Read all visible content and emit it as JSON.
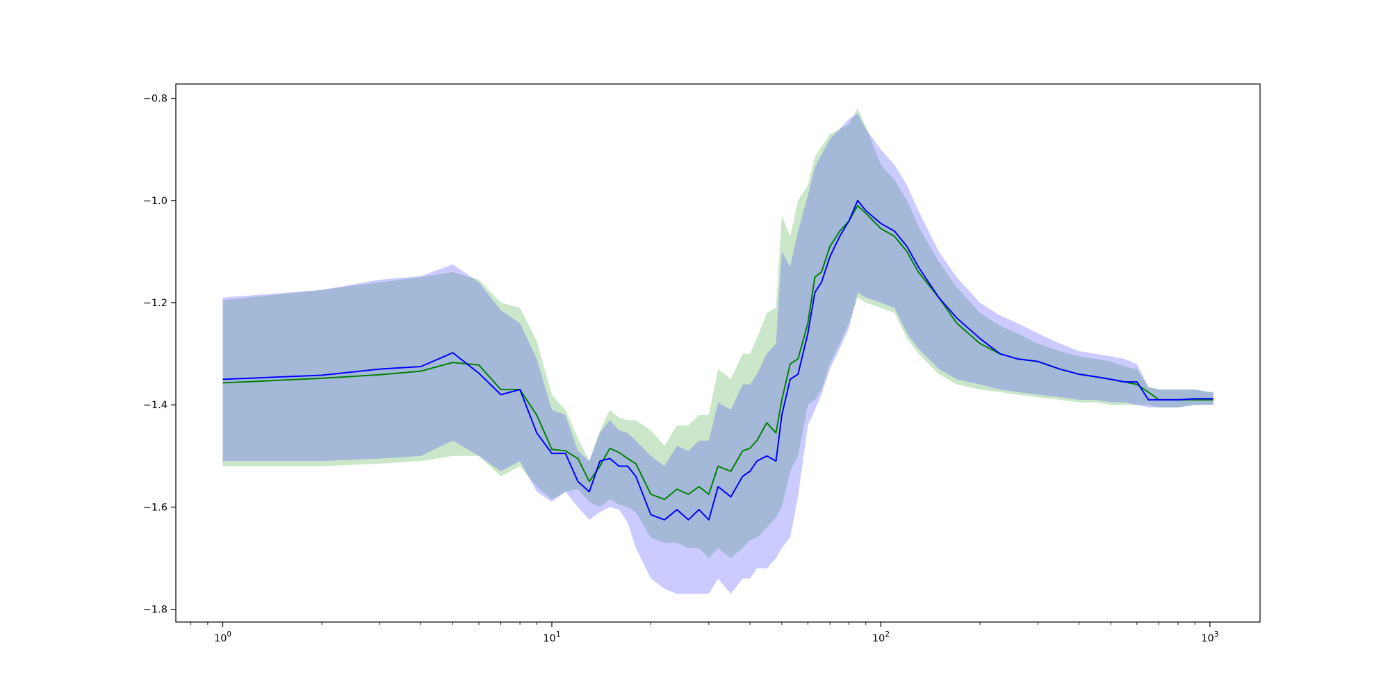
{
  "chart_data": {
    "type": "line",
    "title": "",
    "xlabel": "",
    "ylabel": "",
    "x_scale": "log",
    "xlim": [
      0.72,
      1420
    ],
    "ylim": [
      -1.825,
      -0.772
    ],
    "grid": false,
    "x_ticks": [
      {
        "value": 1,
        "base": "10",
        "exp": "0"
      },
      {
        "value": 10,
        "base": "10",
        "exp": "1"
      },
      {
        "value": 100,
        "base": "10",
        "exp": "2"
      },
      {
        "value": 1000,
        "base": "10",
        "exp": "3"
      }
    ],
    "y_ticks": [
      {
        "value": -1.8,
        "label": "−1.8"
      },
      {
        "value": -1.6,
        "label": "−1.6"
      },
      {
        "value": -1.4,
        "label": "−1.4"
      },
      {
        "value": -1.2,
        "label": "−1.2"
      },
      {
        "value": -1.0,
        "label": "−1.0"
      },
      {
        "value": -0.8,
        "label": "−0.8"
      }
    ],
    "colors": {
      "green_line": "#008000",
      "blue_line": "#0000ff",
      "green_band": "#2ca02c",
      "blue_band": "#4444ff"
    },
    "series": [
      {
        "color": "green",
        "x": [
          1,
          2,
          3,
          4,
          5,
          6,
          7,
          8,
          9,
          10,
          11,
          12,
          13,
          14,
          15,
          16,
          17,
          18,
          20,
          22,
          24,
          26,
          28,
          30,
          32,
          35,
          38,
          40,
          42,
          45,
          48,
          50,
          53,
          56,
          60,
          63,
          66,
          70,
          75,
          80,
          85,
          90,
          100,
          110,
          120,
          130,
          150,
          170,
          200,
          230,
          260,
          300,
          350,
          400,
          450,
          500,
          550,
          600,
          650,
          700,
          800,
          900,
          1000,
          1024
        ],
        "y": [
          -1.357,
          -1.348,
          -1.341,
          -1.334,
          -1.317,
          -1.322,
          -1.37,
          -1.37,
          -1.42,
          -1.487,
          -1.49,
          -1.505,
          -1.55,
          -1.52,
          -1.485,
          -1.493,
          -1.505,
          -1.515,
          -1.575,
          -1.585,
          -1.565,
          -1.575,
          -1.56,
          -1.575,
          -1.52,
          -1.53,
          -1.49,
          -1.485,
          -1.47,
          -1.435,
          -1.455,
          -1.39,
          -1.32,
          -1.31,
          -1.24,
          -1.15,
          -1.14,
          -1.09,
          -1.06,
          -1.04,
          -1.01,
          -1.025,
          -1.055,
          -1.07,
          -1.1,
          -1.14,
          -1.19,
          -1.24,
          -1.28,
          -1.3,
          -1.31,
          -1.315,
          -1.33,
          -1.34,
          -1.345,
          -1.35,
          -1.355,
          -1.36,
          -1.375,
          -1.39,
          -1.39,
          -1.39,
          -1.39,
          -1.39
        ],
        "band_upper": [
          -1.195,
          -1.175,
          -1.16,
          -1.15,
          -1.14,
          -1.155,
          -1.2,
          -1.21,
          -1.275,
          -1.38,
          -1.41,
          -1.465,
          -1.51,
          -1.45,
          -1.41,
          -1.425,
          -1.43,
          -1.43,
          -1.45,
          -1.48,
          -1.44,
          -1.44,
          -1.42,
          -1.42,
          -1.33,
          -1.35,
          -1.3,
          -1.3,
          -1.27,
          -1.22,
          -1.21,
          -1.03,
          -1.07,
          -1.0,
          -0.97,
          -0.915,
          -0.895,
          -0.87,
          -0.86,
          -0.85,
          -0.82,
          -0.855,
          -0.93,
          -0.96,
          -1.0,
          -1.05,
          -1.12,
          -1.17,
          -1.22,
          -1.245,
          -1.26,
          -1.28,
          -1.295,
          -1.305,
          -1.31,
          -1.315,
          -1.325,
          -1.33,
          -1.365,
          -1.37,
          -1.37,
          -1.37,
          -1.375,
          -1.375
        ],
        "band_lower": [
          -1.52,
          -1.52,
          -1.515,
          -1.51,
          -1.5,
          -1.5,
          -1.54,
          -1.52,
          -1.56,
          -1.585,
          -1.57,
          -1.565,
          -1.59,
          -1.6,
          -1.585,
          -1.595,
          -1.6,
          -1.61,
          -1.66,
          -1.67,
          -1.67,
          -1.68,
          -1.68,
          -1.7,
          -1.68,
          -1.7,
          -1.68,
          -1.665,
          -1.66,
          -1.64,
          -1.62,
          -1.6,
          -1.53,
          -1.5,
          -1.4,
          -1.39,
          -1.37,
          -1.32,
          -1.28,
          -1.24,
          -1.19,
          -1.2,
          -1.21,
          -1.22,
          -1.27,
          -1.3,
          -1.34,
          -1.36,
          -1.37,
          -1.375,
          -1.38,
          -1.385,
          -1.39,
          -1.395,
          -1.395,
          -1.4,
          -1.4,
          -1.4,
          -1.4,
          -1.405,
          -1.405,
          -1.4,
          -1.4,
          -1.4
        ]
      },
      {
        "color": "blue",
        "x": [
          1,
          2,
          3,
          4,
          5,
          6,
          7,
          8,
          9,
          10,
          11,
          12,
          13,
          14,
          15,
          16,
          17,
          18,
          20,
          22,
          24,
          26,
          28,
          30,
          32,
          35,
          38,
          40,
          42,
          45,
          48,
          50,
          53,
          56,
          60,
          63,
          66,
          70,
          75,
          80,
          85,
          90,
          100,
          110,
          120,
          130,
          150,
          170,
          200,
          230,
          260,
          300,
          350,
          400,
          450,
          500,
          550,
          600,
          650,
          700,
          800,
          900,
          1000,
          1024
        ],
        "y": [
          -1.35,
          -1.342,
          -1.33,
          -1.325,
          -1.298,
          -1.338,
          -1.38,
          -1.37,
          -1.455,
          -1.495,
          -1.495,
          -1.55,
          -1.57,
          -1.51,
          -1.505,
          -1.52,
          -1.52,
          -1.54,
          -1.615,
          -1.625,
          -1.605,
          -1.625,
          -1.605,
          -1.625,
          -1.56,
          -1.58,
          -1.54,
          -1.53,
          -1.51,
          -1.5,
          -1.51,
          -1.42,
          -1.35,
          -1.34,
          -1.26,
          -1.18,
          -1.16,
          -1.11,
          -1.07,
          -1.04,
          -1.0,
          -1.02,
          -1.045,
          -1.06,
          -1.09,
          -1.13,
          -1.19,
          -1.23,
          -1.27,
          -1.3,
          -1.31,
          -1.315,
          -1.33,
          -1.34,
          -1.345,
          -1.35,
          -1.355,
          -1.355,
          -1.39,
          -1.39,
          -1.39,
          -1.388,
          -1.388,
          -1.388
        ],
        "band_upper": [
          -1.19,
          -1.175,
          -1.155,
          -1.148,
          -1.125,
          -1.16,
          -1.215,
          -1.24,
          -1.31,
          -1.41,
          -1.42,
          -1.49,
          -1.51,
          -1.455,
          -1.43,
          -1.45,
          -1.455,
          -1.47,
          -1.5,
          -1.52,
          -1.48,
          -1.49,
          -1.47,
          -1.47,
          -1.395,
          -1.41,
          -1.36,
          -1.36,
          -1.34,
          -1.3,
          -1.28,
          -1.1,
          -1.13,
          -1.06,
          -0.99,
          -0.935,
          -0.91,
          -0.88,
          -0.86,
          -0.84,
          -0.83,
          -0.86,
          -0.9,
          -0.93,
          -0.97,
          -1.02,
          -1.1,
          -1.15,
          -1.2,
          -1.225,
          -1.24,
          -1.26,
          -1.28,
          -1.295,
          -1.3,
          -1.305,
          -1.31,
          -1.32,
          -1.365,
          -1.37,
          -1.37,
          -1.37,
          -1.375,
          -1.375
        ],
        "band_lower": [
          -1.51,
          -1.51,
          -1.505,
          -1.5,
          -1.47,
          -1.5,
          -1.53,
          -1.51,
          -1.57,
          -1.59,
          -1.57,
          -1.6,
          -1.625,
          -1.61,
          -1.6,
          -1.605,
          -1.63,
          -1.68,
          -1.74,
          -1.76,
          -1.77,
          -1.77,
          -1.77,
          -1.77,
          -1.74,
          -1.77,
          -1.74,
          -1.74,
          -1.72,
          -1.72,
          -1.7,
          -1.68,
          -1.66,
          -1.58,
          -1.44,
          -1.41,
          -1.38,
          -1.33,
          -1.29,
          -1.25,
          -1.18,
          -1.19,
          -1.2,
          -1.21,
          -1.26,
          -1.29,
          -1.33,
          -1.35,
          -1.36,
          -1.37,
          -1.375,
          -1.38,
          -1.385,
          -1.39,
          -1.39,
          -1.395,
          -1.395,
          -1.4,
          -1.405,
          -1.405,
          -1.405,
          -1.4,
          -1.4,
          -1.4
        ]
      }
    ]
  }
}
